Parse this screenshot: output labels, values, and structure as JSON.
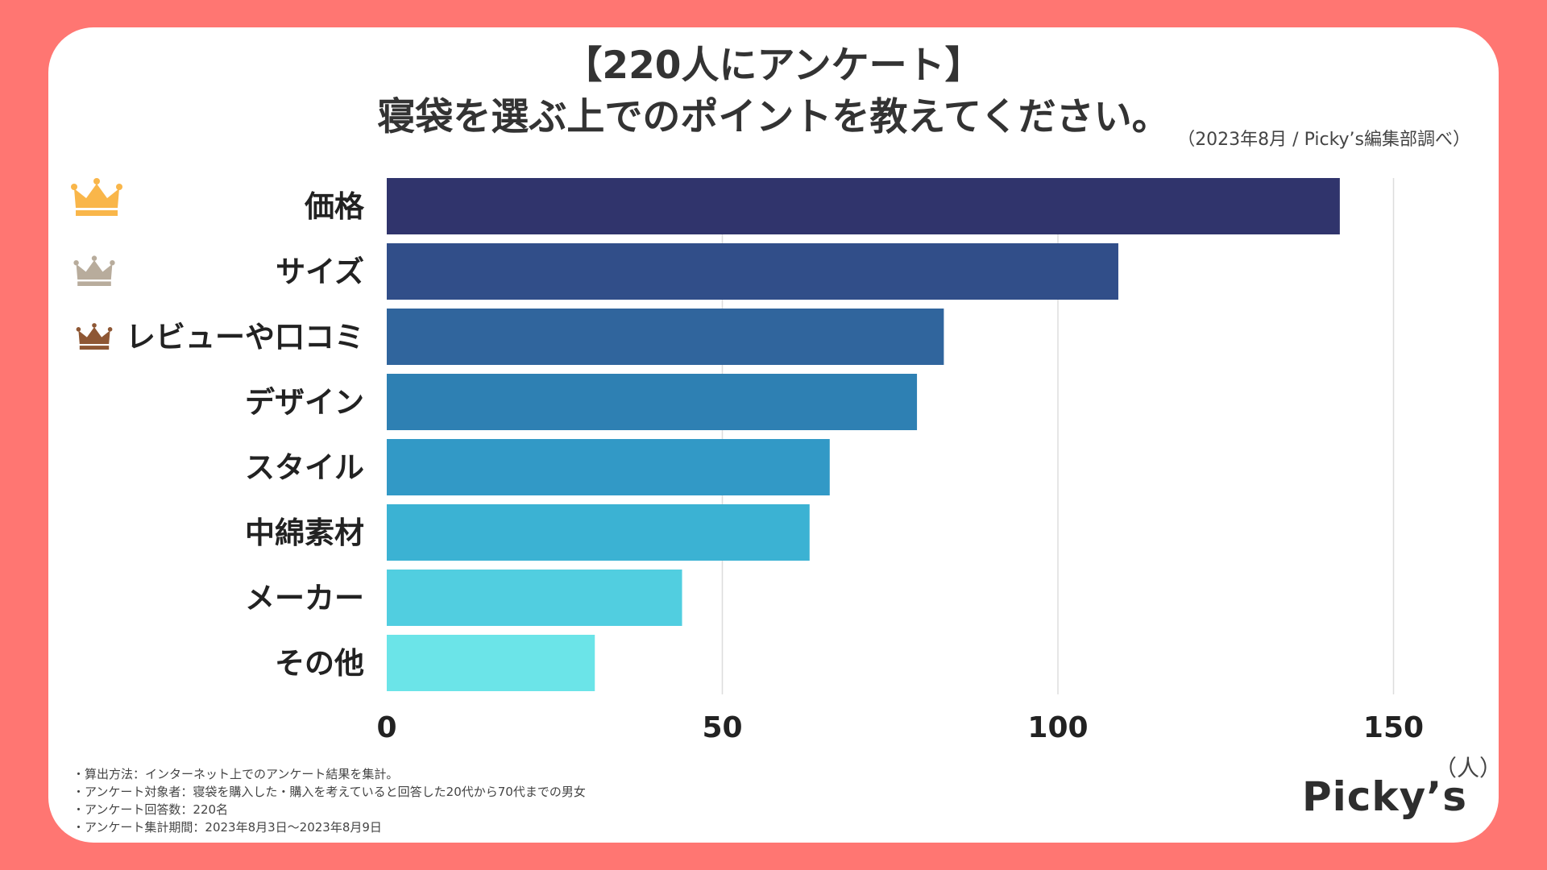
{
  "title": {
    "line1": "【220人にアンケート】",
    "line2": "寝袋を選ぶ上でのポイントを教えてください。"
  },
  "source": "（2023年8月 / Picky’s編集部調べ）",
  "chart_data": {
    "type": "bar",
    "orientation": "horizontal",
    "categories": [
      "価格",
      "サイズ",
      "レビューや口コミ",
      "デザイン",
      "スタイル",
      "中綿素材",
      "メーカー",
      "その他"
    ],
    "values": [
      142,
      109,
      83,
      79,
      66,
      63,
      44,
      31
    ],
    "xticks": [
      "0",
      "50",
      "100",
      "150"
    ],
    "xlim": [
      0,
      160
    ],
    "unit_label": "（人）",
    "grid": true,
    "rank_icons": [
      "crown-gold",
      "crown-silver",
      "crown-bronze"
    ],
    "colors": {
      "bars": [
        "#30346C",
        "#314E89",
        "#30659D",
        "#2E80B3",
        "#3299C6",
        "#3BB2D3",
        "#51CEE0",
        "#6BE4E8"
      ],
      "crowns": [
        "#F9B64A",
        "#B8AC9C",
        "#8E5734"
      ],
      "grid": "#DDDDDD",
      "text": "#222222"
    }
  },
  "notes": [
    "・算出方法：インターネット上でのアンケート結果を集計。",
    "・アンケート対象者：寝袋を購入した・購入を考えていると回答した20代から70代までの男女",
    "・アンケート回答数：220名",
    "・アンケート集計期間：2023年8月3日〜2023年8月9日"
  ],
  "brand": "Picky’s"
}
